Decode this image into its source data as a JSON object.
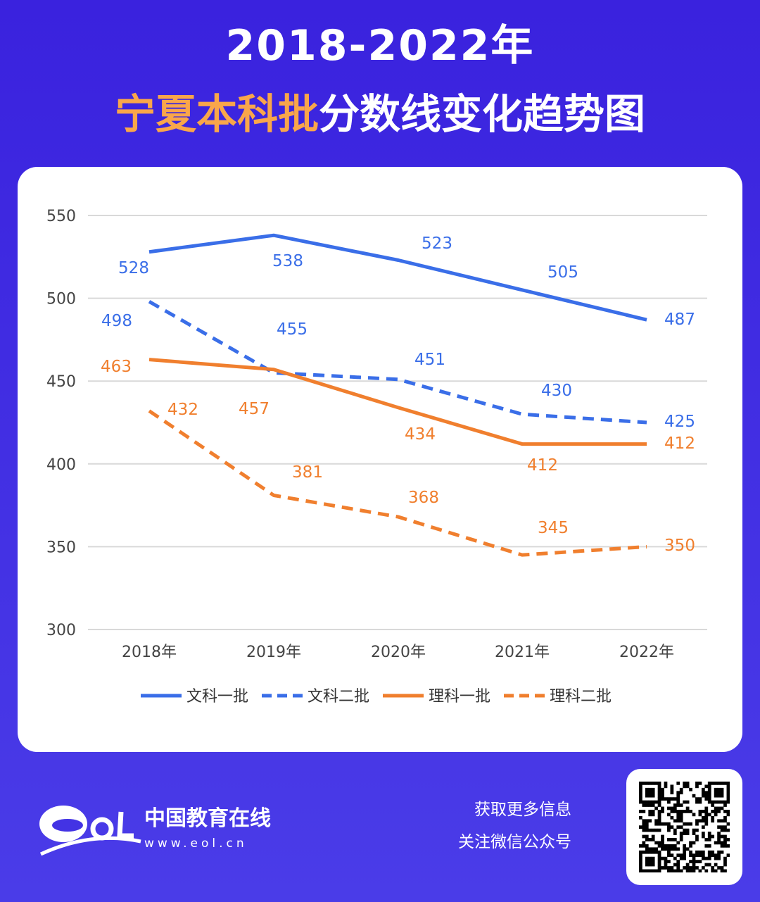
{
  "title_line1": "2018-2022年",
  "title_highlight": "宁夏本科批",
  "title_rest": "分数线变化趋势图",
  "chart_data": {
    "type": "line",
    "categories": [
      "2018年",
      "2019年",
      "2020年",
      "2021年",
      "2022年"
    ],
    "ylim": [
      300,
      550
    ],
    "yticks": [
      300,
      350,
      400,
      450,
      500,
      550
    ],
    "grid": true,
    "legend_position": "bottom",
    "series": [
      {
        "name": "文科一批",
        "color": "#3a6ee8",
        "dash": false,
        "values": [
          528,
          538,
          523,
          505,
          487
        ]
      },
      {
        "name": "文科二批",
        "color": "#3a6ee8",
        "dash": true,
        "values": [
          498,
          455,
          451,
          430,
          425
        ]
      },
      {
        "name": "理科一批",
        "color": "#f07f2e",
        "dash": false,
        "values": [
          463,
          457,
          434,
          412,
          412
        ]
      },
      {
        "name": "理科二批",
        "color": "#f07f2e",
        "dash": true,
        "values": [
          432,
          381,
          368,
          345,
          350
        ]
      }
    ]
  },
  "footer": {
    "brand": "中国教育在线",
    "url": "www.eol.cn",
    "line1": "获取更多信息",
    "line2": "关注微信公众号"
  }
}
